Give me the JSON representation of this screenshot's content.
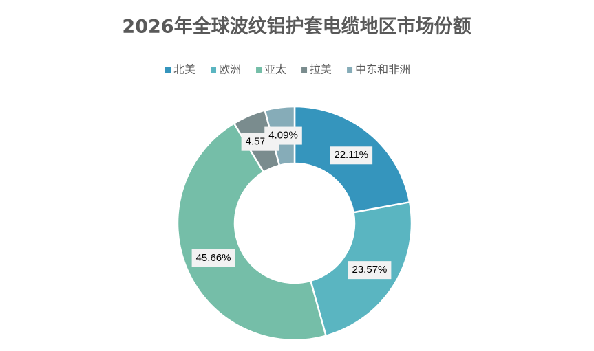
{
  "chart_data": {
    "type": "donut",
    "title": "2026年全球波纹铝护套电缆地区市场份额",
    "categories": [
      "北美",
      "欧洲",
      "亚太",
      "拉美",
      "中东和非洲"
    ],
    "values": [
      22.11,
      23.57,
      45.66,
      4.57,
      4.09
    ],
    "value_labels": [
      "22.11%",
      "23.57%",
      "45.66%",
      "4.57%",
      "4.09%"
    ],
    "colors": [
      "#3595bd",
      "#5ab5c1",
      "#75bea8",
      "#7a8c8e",
      "#86acb8"
    ],
    "legend": "top"
  }
}
